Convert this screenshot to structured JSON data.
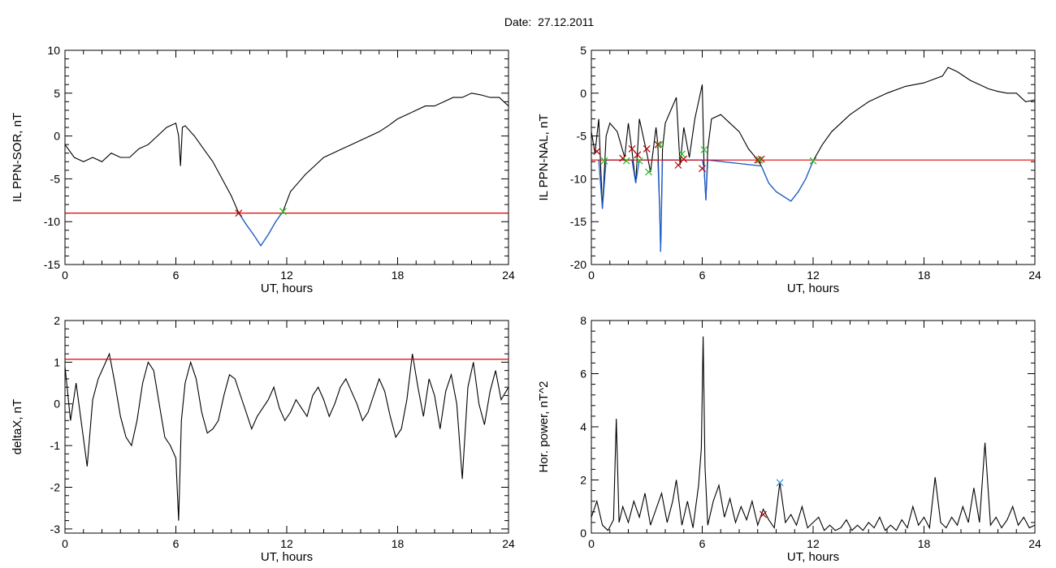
{
  "figure": {
    "title_prefix": "Date:",
    "date": "27.12.2011"
  },
  "colors": {
    "trace": "#000000",
    "threshold": "#dd0000",
    "segment": "#1f5fd0",
    "marker_start": "#b00000",
    "marker_end": "#22bb22",
    "marker_peak": "#3090e0"
  },
  "chart_data": [
    {
      "id": "sor",
      "type": "line",
      "xlabel": "UT, hours",
      "ylabel": "IL PPN-SOR, nT",
      "xlim": [
        0,
        24
      ],
      "ylim": [
        -15,
        10
      ],
      "xticks": [
        0,
        6,
        12,
        18,
        24
      ],
      "yticks": [
        -15,
        -10,
        -5,
        0,
        5,
        10
      ],
      "threshold": -9.0,
      "series": [
        {
          "x": [
            0,
            0.5,
            1,
            1.5,
            2,
            2.5,
            3,
            3.5,
            4,
            4.5,
            5,
            5.5,
            6,
            6.15,
            6.25,
            6.35,
            6.5,
            7,
            7.5,
            8,
            8.5,
            9,
            9.4,
            9.8,
            10.2,
            10.6,
            11,
            11.4,
            11.8,
            12.2,
            12.6,
            13,
            13.5,
            14,
            14.5,
            15,
            15.5,
            16,
            16.5,
            17,
            17.5,
            18,
            18.5,
            19,
            19.5,
            20,
            20.5,
            21,
            21.5,
            22,
            22.5,
            23,
            23.5,
            24
          ],
          "y": [
            -1.0,
            -2.5,
            -3.0,
            -2.5,
            -3.0,
            -2.0,
            -2.5,
            -2.5,
            -1.5,
            -1.0,
            0.0,
            1.0,
            1.5,
            0.0,
            -3.5,
            1.0,
            1.2,
            0.0,
            -1.5,
            -3.0,
            -5.0,
            -7.0,
            -9.0,
            -10.3,
            -11.5,
            -12.8,
            -11.5,
            -10.0,
            -8.8,
            -6.5,
            -5.5,
            -4.5,
            -3.5,
            -2.5,
            -2.0,
            -1.5,
            -1.0,
            -0.5,
            0.0,
            0.5,
            1.2,
            2.0,
            2.5,
            3.0,
            3.5,
            3.5,
            4.0,
            4.5,
            4.5,
            5.0,
            4.8,
            4.5,
            4.5,
            3.5
          ]
        }
      ],
      "highlight": {
        "x": [
          9.4,
          9.8,
          10.2,
          10.6,
          11,
          11.4,
          11.8
        ],
        "y": [
          -9.0,
          -10.3,
          -11.5,
          -12.8,
          -11.5,
          -10.0,
          -8.8
        ]
      },
      "markers_start": [
        {
          "x": 9.4,
          "y": -9.0
        }
      ],
      "markers_end": [
        {
          "x": 11.8,
          "y": -8.8
        }
      ],
      "markers_peak": []
    },
    {
      "id": "nal",
      "type": "line",
      "xlabel": "UT, hours",
      "ylabel": "IL PPN-NAL, nT",
      "xlim": [
        0,
        24
      ],
      "ylim": [
        -20,
        5
      ],
      "xticks": [
        0,
        6,
        12,
        18,
        24
      ],
      "yticks": [
        -20,
        -15,
        -10,
        -5,
        0,
        5
      ],
      "threshold": -7.8,
      "series": [
        {
          "x": [
            0,
            0.2,
            0.4,
            0.6,
            0.8,
            1,
            1.4,
            1.8,
            2.0,
            2.2,
            2.4,
            2.6,
            3.0,
            3.2,
            3.5,
            3.6,
            3.7,
            3.75,
            3.85,
            4.0,
            4.3,
            4.6,
            4.8,
            5.0,
            5.3,
            5.6,
            6.0,
            6.1,
            6.2,
            6.3,
            6.5,
            7.0,
            7.5,
            8.0,
            8.5,
            9.0,
            9.2,
            9.6,
            10.0,
            10.5,
            10.8,
            11.2,
            11.6,
            12.0,
            12.5,
            13,
            14,
            15,
            16,
            17,
            18,
            19,
            19.3,
            19.8,
            20.5,
            21,
            21.5,
            22,
            22.5,
            23,
            23.5,
            24
          ],
          "y": [
            -4.5,
            -7.0,
            -3.0,
            -13.5,
            -5.0,
            -3.5,
            -4.5,
            -7.5,
            -3.5,
            -6.7,
            -10.5,
            -3.0,
            -7.0,
            -9.2,
            -4.0,
            -6.0,
            -14.0,
            -18.5,
            -6.5,
            -3.5,
            -2.0,
            -0.5,
            -8.4,
            -4.0,
            -7.5,
            -3.0,
            1.0,
            -8.8,
            -12.5,
            -6.5,
            -3.0,
            -2.5,
            -3.5,
            -4.5,
            -6.5,
            -7.8,
            -8.5,
            -10.5,
            -11.5,
            -12.2,
            -12.6,
            -11.5,
            -10.0,
            -7.9,
            -6.0,
            -4.5,
            -2.5,
            -1.0,
            0.0,
            0.8,
            1.2,
            2.0,
            3.0,
            2.5,
            1.5,
            1.0,
            0.5,
            0.2,
            0.0,
            0.0,
            -1.0,
            -0.8
          ]
        }
      ],
      "highlight": {
        "x": [
          0.4,
          0.6,
          0.8,
          2.2,
          2.4,
          2.6,
          3.5,
          3.6,
          3.7,
          3.75,
          3.85,
          6.0,
          6.1,
          6.2,
          6.3,
          9.2,
          9.6,
          10.0,
          10.5,
          10.8,
          11.2,
          11.6,
          12.0
        ],
        "y": [
          -7.8,
          -13.5,
          -7.8,
          -7.8,
          -10.5,
          -7.8,
          -7.8,
          -7.8,
          -14.0,
          -18.5,
          -7.8,
          -7.8,
          -8.8,
          -12.5,
          -7.8,
          -8.5,
          -10.5,
          -11.5,
          -12.2,
          -12.6,
          -11.5,
          -10.0,
          -7.9
        ]
      },
      "markers_start": [
        {
          "x": 0.3,
          "y": -6.8
        },
        {
          "x": 1.7,
          "y": -7.6
        },
        {
          "x": 2.2,
          "y": -6.5
        },
        {
          "x": 2.5,
          "y": -7.2
        },
        {
          "x": 3.0,
          "y": -6.5
        },
        {
          "x": 3.6,
          "y": -6.0
        },
        {
          "x": 4.7,
          "y": -8.4
        },
        {
          "x": 5.0,
          "y": -7.7
        },
        {
          "x": 6.0,
          "y": -8.8
        },
        {
          "x": 9.0,
          "y": -7.8
        },
        {
          "x": 9.2,
          "y": -7.7
        }
      ],
      "markers_end": [
        {
          "x": 0.7,
          "y": -7.9
        },
        {
          "x": 1.9,
          "y": -7.9
        },
        {
          "x": 2.6,
          "y": -7.9
        },
        {
          "x": 3.1,
          "y": -9.2
        },
        {
          "x": 3.7,
          "y": -6.0
        },
        {
          "x": 4.9,
          "y": -7.1
        },
        {
          "x": 6.1,
          "y": -6.6
        },
        {
          "x": 9.1,
          "y": -7.8
        },
        {
          "x": 12.0,
          "y": -7.9
        }
      ],
      "markers_peak": []
    },
    {
      "id": "deltax",
      "type": "line",
      "xlabel": "UT, hours",
      "ylabel": "deltaX, nT",
      "xlim": [
        0,
        24
      ],
      "ylim": [
        -3.1,
        2
      ],
      "xticks": [
        0,
        6,
        12,
        18,
        24
      ],
      "yticks": [
        -3,
        -2,
        -1,
        0,
        1,
        2
      ],
      "threshold": 1.07,
      "series": [
        {
          "x": [
            0,
            0.3,
            0.6,
            0.9,
            1.2,
            1.5,
            1.8,
            2.1,
            2.4,
            2.7,
            3.0,
            3.3,
            3.6,
            3.9,
            4.2,
            4.5,
            4.8,
            5.1,
            5.4,
            5.7,
            6.0,
            6.15,
            6.3,
            6.5,
            6.8,
            7.1,
            7.4,
            7.7,
            8.0,
            8.3,
            8.6,
            8.9,
            9.2,
            9.5,
            9.8,
            10.1,
            10.4,
            10.7,
            11.0,
            11.3,
            11.6,
            11.9,
            12.2,
            12.5,
            12.8,
            13.1,
            13.4,
            13.7,
            14.0,
            14.3,
            14.6,
            14.9,
            15.2,
            15.5,
            15.8,
            16.1,
            16.4,
            16.7,
            17.0,
            17.3,
            17.6,
            17.9,
            18.2,
            18.5,
            18.8,
            19.1,
            19.4,
            19.7,
            20.0,
            20.3,
            20.6,
            20.9,
            21.2,
            21.5,
            21.8,
            22.1,
            22.4,
            22.7,
            23.0,
            23.3,
            23.6,
            24
          ],
          "y": [
            0.9,
            -0.4,
            0.5,
            -0.5,
            -1.5,
            0.1,
            0.6,
            0.9,
            1.2,
            0.5,
            -0.3,
            -0.8,
            -1.0,
            -0.4,
            0.5,
            1.0,
            0.8,
            0.0,
            -0.8,
            -1.0,
            -1.3,
            -2.8,
            -0.4,
            0.5,
            1.0,
            0.6,
            -0.2,
            -0.7,
            -0.6,
            -0.4,
            0.2,
            0.7,
            0.6,
            0.2,
            -0.2,
            -0.6,
            -0.3,
            -0.1,
            0.1,
            0.4,
            -0.1,
            -0.4,
            -0.2,
            0.1,
            -0.1,
            -0.3,
            0.2,
            0.4,
            0.1,
            -0.3,
            0.0,
            0.4,
            0.6,
            0.3,
            0.0,
            -0.4,
            -0.2,
            0.2,
            0.6,
            0.3,
            -0.3,
            -0.8,
            -0.6,
            0.1,
            1.2,
            0.4,
            -0.3,
            0.6,
            0.2,
            -0.6,
            0.3,
            0.7,
            0.0,
            -1.8,
            0.4,
            1.0,
            0.0,
            -0.5,
            0.3,
            0.8,
            0.1,
            0.4
          ]
        }
      ],
      "highlight": {
        "x": [],
        "y": []
      },
      "markers_start": [],
      "markers_end": [],
      "markers_peak": []
    },
    {
      "id": "power",
      "type": "line",
      "xlabel": "UT, hours",
      "ylabel": "Hor. power, nT^2",
      "xlim": [
        0,
        24
      ],
      "ylim": [
        0,
        8
      ],
      "xticks": [
        0,
        6,
        12,
        18,
        24
      ],
      "yticks": [
        0,
        2,
        4,
        6,
        8
      ],
      "threshold": null,
      "series": [
        {
          "x": [
            0,
            0.3,
            0.6,
            0.9,
            1.2,
            1.35,
            1.5,
            1.7,
            2.0,
            2.3,
            2.6,
            2.9,
            3.2,
            3.5,
            3.8,
            4.1,
            4.4,
            4.6,
            4.9,
            5.2,
            5.5,
            5.8,
            5.95,
            6.05,
            6.15,
            6.3,
            6.6,
            6.9,
            7.2,
            7.5,
            7.8,
            8.1,
            8.4,
            8.7,
            9.0,
            9.3,
            9.6,
            9.9,
            10.2,
            10.5,
            10.8,
            11.1,
            11.4,
            11.7,
            12.0,
            12.3,
            12.6,
            12.9,
            13.2,
            13.5,
            13.8,
            14.1,
            14.4,
            14.7,
            15.0,
            15.3,
            15.6,
            15.9,
            16.2,
            16.5,
            16.8,
            17.1,
            17.4,
            17.7,
            18.0,
            18.3,
            18.6,
            18.9,
            19.2,
            19.5,
            19.8,
            20.1,
            20.4,
            20.7,
            21.0,
            21.3,
            21.6,
            21.9,
            22.2,
            22.5,
            22.8,
            23.1,
            23.4,
            23.7,
            24
          ],
          "y": [
            0.6,
            1.2,
            0.3,
            0.1,
            0.5,
            4.3,
            0.4,
            1.0,
            0.4,
            1.2,
            0.6,
            1.5,
            0.3,
            0.9,
            1.5,
            0.4,
            1.2,
            2.0,
            0.3,
            1.2,
            0.2,
            1.8,
            3.2,
            7.4,
            2.5,
            0.3,
            1.2,
            1.8,
            0.6,
            1.3,
            0.4,
            1.0,
            0.5,
            1.2,
            0.3,
            0.9,
            0.5,
            0.2,
            1.9,
            0.4,
            0.7,
            0.3,
            1.0,
            0.2,
            0.4,
            0.6,
            0.1,
            0.3,
            0.1,
            0.2,
            0.5,
            0.1,
            0.3,
            0.1,
            0.4,
            0.2,
            0.6,
            0.1,
            0.3,
            0.1,
            0.5,
            0.2,
            1.0,
            0.3,
            0.6,
            0.2,
            2.1,
            0.4,
            0.2,
            0.6,
            0.3,
            1.0,
            0.4,
            1.7,
            0.4,
            3.4,
            0.3,
            0.6,
            0.2,
            0.5,
            1.0,
            0.3,
            0.6,
            0.2,
            0.3
          ]
        }
      ],
      "highlight": {
        "x": [],
        "y": []
      },
      "markers_start": [
        {
          "x": 9.3,
          "y": 0.7
        }
      ],
      "markers_end": [],
      "markers_peak": [
        {
          "x": 10.2,
          "y": 1.9
        }
      ]
    }
  ]
}
